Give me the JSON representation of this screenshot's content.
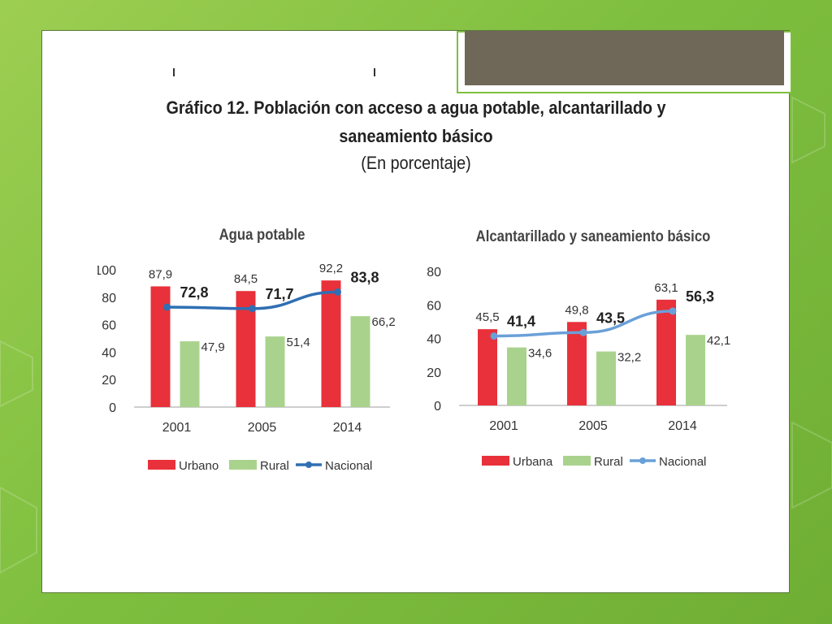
{
  "figure": {
    "title_line1": "Gráfico 12. Población con acceso a agua potable, alcantarillado y",
    "title_line2": "saneamiento básico",
    "subtitle": "(En porcentaje)"
  },
  "colors": {
    "urban": "#e8313a",
    "rural": "#a9d38d",
    "national_left": "#2f6fb3",
    "national_right": "#6aa0d8"
  },
  "chart_data": [
    {
      "type": "bar",
      "title": "Agua potable",
      "categories": [
        "2001",
        "2005",
        "2014"
      ],
      "ylim": [
        0,
        100
      ],
      "yticks": [
        "0",
        "20",
        "40",
        "60",
        "80",
        "100"
      ],
      "series": [
        {
          "name": "Urbano",
          "type": "bar",
          "values": [
            87.9,
            84.5,
            92.2
          ],
          "labels": [
            "87,9",
            "84,5",
            "92,2"
          ]
        },
        {
          "name": "Rural",
          "type": "bar",
          "values": [
            47.9,
            51.4,
            66.2
          ],
          "labels": [
            "47,9",
            "51,4",
            "66,2"
          ]
        },
        {
          "name": "Nacional",
          "type": "line",
          "values": [
            72.8,
            71.7,
            83.8
          ],
          "labels": [
            "72,8",
            "71,7",
            "83,8"
          ]
        }
      ],
      "legend": "bottom"
    },
    {
      "type": "bar",
      "title": "Alcantarillado y saneamiento básico",
      "categories": [
        "2001",
        "2005",
        "2014"
      ],
      "ylim": [
        0,
        80
      ],
      "yticks": [
        "0",
        "20",
        "40",
        "60",
        "80"
      ],
      "series": [
        {
          "name": "Urbana",
          "type": "bar",
          "values": [
            45.5,
            49.8,
            63.1
          ],
          "labels": [
            "45,5",
            "49,8",
            "63,1"
          ]
        },
        {
          "name": "Rural",
          "type": "bar",
          "values": [
            34.6,
            32.2,
            42.1
          ],
          "labels": [
            "34,6",
            "32,2",
            "42,1"
          ]
        },
        {
          "name": "Nacional",
          "type": "line",
          "values": [
            41.4,
            43.5,
            56.3
          ],
          "labels": [
            "41,4",
            "43,5",
            "56,3"
          ]
        }
      ],
      "legend": "bottom"
    }
  ]
}
